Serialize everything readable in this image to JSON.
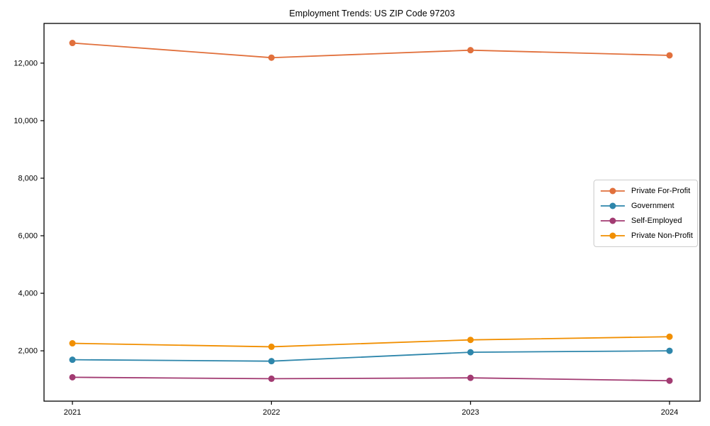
{
  "chart_data": {
    "type": "line",
    "title": "Employment Trends: US ZIP Code 97203",
    "xlabel": "",
    "ylabel": "",
    "x": [
      2021,
      2022,
      2023,
      2024
    ],
    "xtick_labels": [
      "2021",
      "2022",
      "2023",
      "2024"
    ],
    "yticks": [
      2000,
      4000,
      6000,
      8000,
      10000,
      12000
    ],
    "ytick_labels": [
      "2,000",
      "4,000",
      "6,000",
      "8,000",
      "10,000",
      "12,000"
    ],
    "ylim": [
      250,
      13380
    ],
    "grid": false,
    "legend_position": "center right",
    "marker": "circle",
    "series": [
      {
        "name": "Private For-Profit",
        "color": "#E1703C",
        "values": [
          12700,
          12190,
          12450,
          12270
        ]
      },
      {
        "name": "Government",
        "color": "#2E86AB",
        "values": [
          1690,
          1640,
          1950,
          2000
        ]
      },
      {
        "name": "Self-Employed",
        "color": "#A23B72",
        "values": [
          1080,
          1030,
          1060,
          960
        ]
      },
      {
        "name": "Private Non-Profit",
        "color": "#F18F01",
        "values": [
          2260,
          2140,
          2380,
          2490
        ]
      }
    ]
  },
  "frame": {
    "spine_color": "#000000",
    "background": "#ffffff"
  }
}
